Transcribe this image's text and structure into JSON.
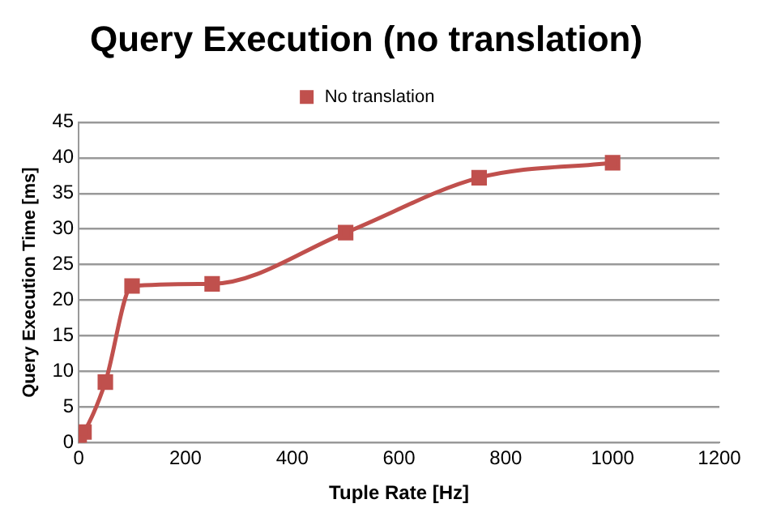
{
  "chart_data": {
    "type": "line",
    "title": "Query Execution (no translation)",
    "xlabel": "Tuple Rate [Hz]",
    "ylabel": "Query Execution Time [ms]",
    "x": [
      1,
      10,
      50,
      100,
      250,
      500,
      750,
      1000
    ],
    "series": [
      {
        "name": "No translation",
        "color": "#c0504d",
        "values": [
          0.8,
          1.5,
          8.5,
          22,
          22.3,
          29.5,
          37.2,
          39.3
        ]
      }
    ],
    "xlim": [
      0,
      1200
    ],
    "xticks": [
      0,
      200,
      400,
      600,
      800,
      1000,
      1200
    ],
    "ylim": [
      0,
      45
    ],
    "yticks": [
      0,
      5,
      10,
      15,
      20,
      25,
      30,
      35,
      40,
      45
    ],
    "grid": "y",
    "legend": "top",
    "marker": "square",
    "line_style": "solid"
  }
}
